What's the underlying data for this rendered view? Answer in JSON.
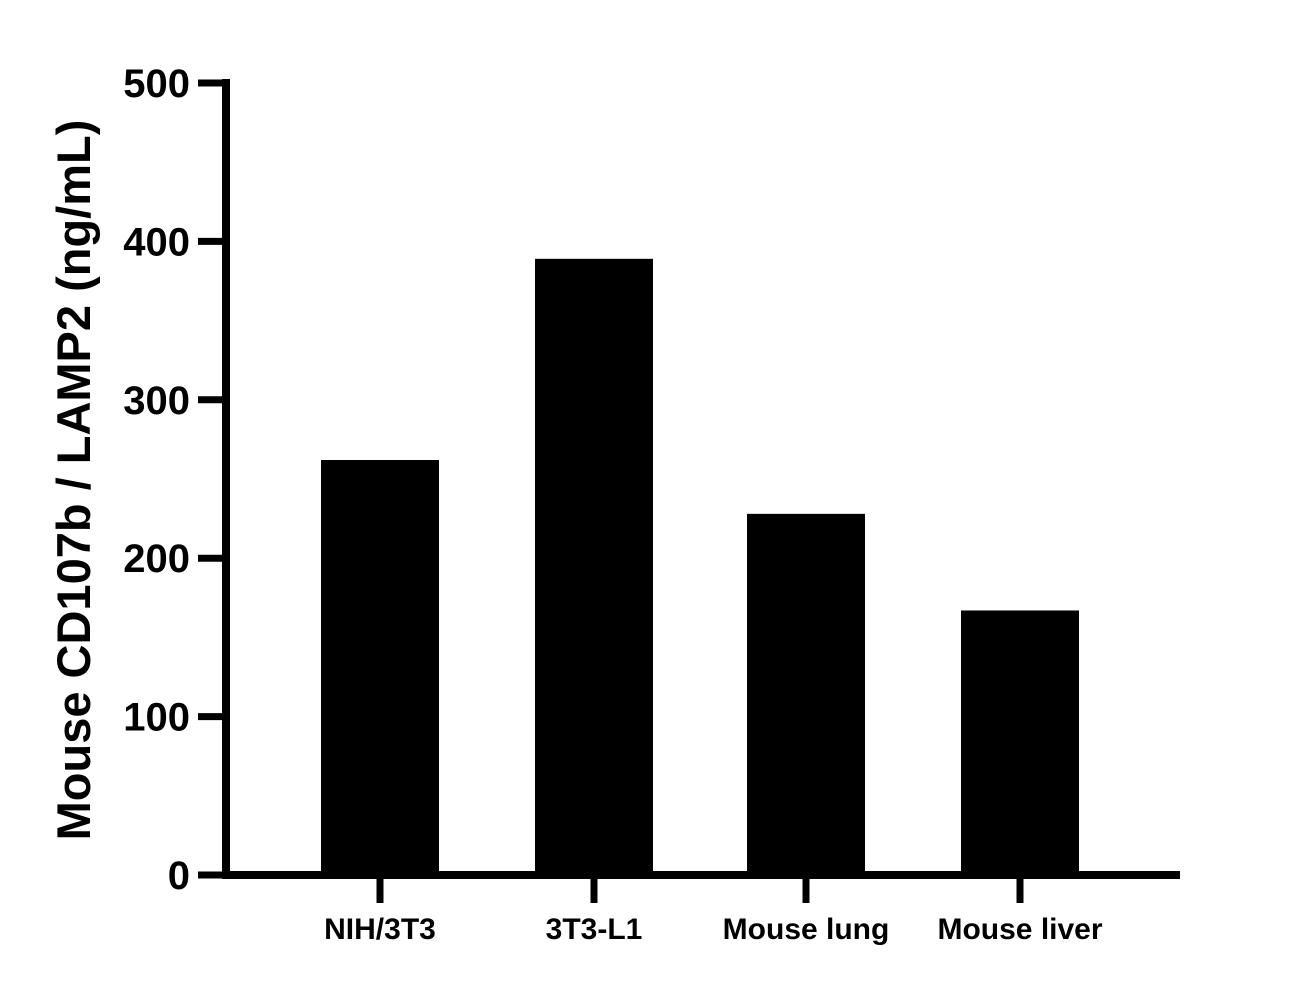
{
  "chart_data": {
    "type": "bar",
    "title": "",
    "xlabel": "",
    "ylabel": "Mouse CD107b / LAMP2 (ng/mL)",
    "categories": [
      "NIH/3T3",
      "3T3-L1",
      "Mouse lung",
      "Mouse liver"
    ],
    "values": [
      262,
      389,
      228,
      167
    ],
    "ylim": [
      0,
      500
    ],
    "yticks": [
      0,
      100,
      200,
      300,
      400,
      500
    ],
    "bar_color": "#000000",
    "axis_color": "#000000",
    "grid": false,
    "legend": "none"
  }
}
